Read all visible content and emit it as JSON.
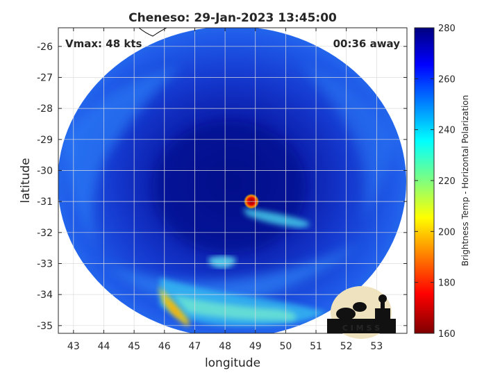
{
  "title": "Cheneso: 29-Jan-2023 13:45:00",
  "vmax_label": "Vmax: 48 kts",
  "time_label": "00:36 away",
  "xlabel": "longitude",
  "ylabel": "latitude",
  "colorbar_label": "Brightness Temp - Horizontal Polarization",
  "logo_text": "C I M S S",
  "x_ticks": [
    "43",
    "44",
    "45",
    "46",
    "47",
    "48",
    "49",
    "50",
    "51",
    "52",
    "53"
  ],
  "y_ticks": [
    "-26",
    "-27",
    "-28",
    "-29",
    "-30",
    "-31",
    "-32",
    "-33",
    "-34",
    "-35"
  ],
  "colorbar_ticks": [
    "280",
    "260",
    "240",
    "220",
    "200",
    "180",
    "160"
  ],
  "colors": {
    "background": "#ffffff",
    "axis": "#262626",
    "grid": "#dcdcdc",
    "eye": "#cc0000",
    "swath_dark": "#06118a",
    "swath_mid": "#1f57e8",
    "swath_light": "#2a86f5",
    "band_cyan": "#4ad8f0",
    "band_yellow": "#ffe000"
  },
  "chart_data": {
    "type": "heatmap",
    "title": "Cheneso: 29-Jan-2023 13:45:00",
    "xlabel": "longitude",
    "ylabel": "latitude",
    "xlim": [
      42.5,
      54.0
    ],
    "ylim": [
      -35.25,
      -25.4
    ],
    "colorbar": {
      "min": 160,
      "max": 280,
      "colormap": "jet",
      "label": "Brightness Temp - Horizontal Polarization"
    },
    "grid": true,
    "storm_center": {
      "lon": 48.85,
      "lat": -30.97,
      "temp": 175
    },
    "annotations": [
      "Vmax: 48 kts",
      "00:36 away"
    ]
  }
}
